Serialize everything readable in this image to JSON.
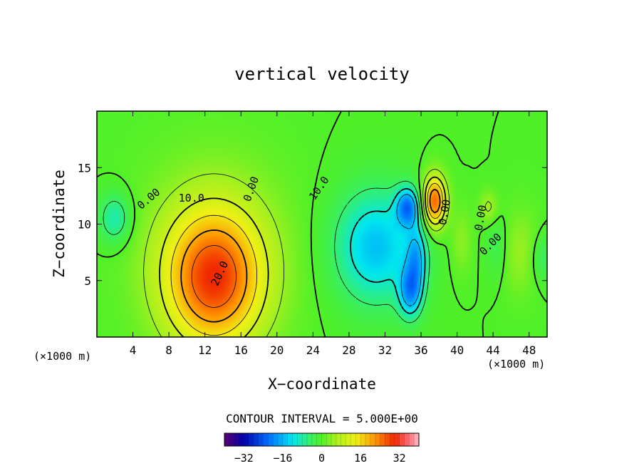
{
  "chart_data": {
    "type": "heatmap",
    "title": "vertical velocity",
    "xlabel": "X−coordinate",
    "ylabel": "Z−coordinate",
    "x_unit": "(×1000 m)",
    "z_unit": "(×1000 m)",
    "xlim": [
      0,
      50
    ],
    "ylim": [
      0,
      20
    ],
    "x_ticks": [
      "4",
      "8",
      "12",
      "16",
      "20",
      "24",
      "28",
      "32",
      "36",
      "40",
      "44",
      "48"
    ],
    "y_ticks": [
      "5",
      "10",
      "15"
    ],
    "contour_interval_text": "CONTOUR INTERVAL = 5.000E+00",
    "colorbar": {
      "range": [
        -40,
        40
      ],
      "ticks": [
        "−32",
        "−16",
        "0",
        "16",
        "32"
      ]
    },
    "contour_labels": [
      "10.0",
      "20.0",
      "0.00",
      "10.0",
      "0.00",
      "0.00",
      "0.00",
      "0.00"
    ],
    "features": [
      {
        "kind": "updraft",
        "x": 13,
        "z": 5,
        "peak": 25
      },
      {
        "kind": "updraft",
        "x": 37.5,
        "z": 12,
        "peak": 25
      },
      {
        "kind": "downdraft",
        "x": 31,
        "z": 8,
        "peak": -15
      },
      {
        "kind": "downdraft",
        "x": 34.5,
        "z": 11.5,
        "peak": -20
      },
      {
        "kind": "downdraft",
        "x": 34.5,
        "z": 4,
        "peak": -18
      },
      {
        "kind": "downdraft",
        "x": 2,
        "z": 10.5,
        "peak": -10
      }
    ],
    "grid": false,
    "legend": "colorbar-bottom"
  }
}
